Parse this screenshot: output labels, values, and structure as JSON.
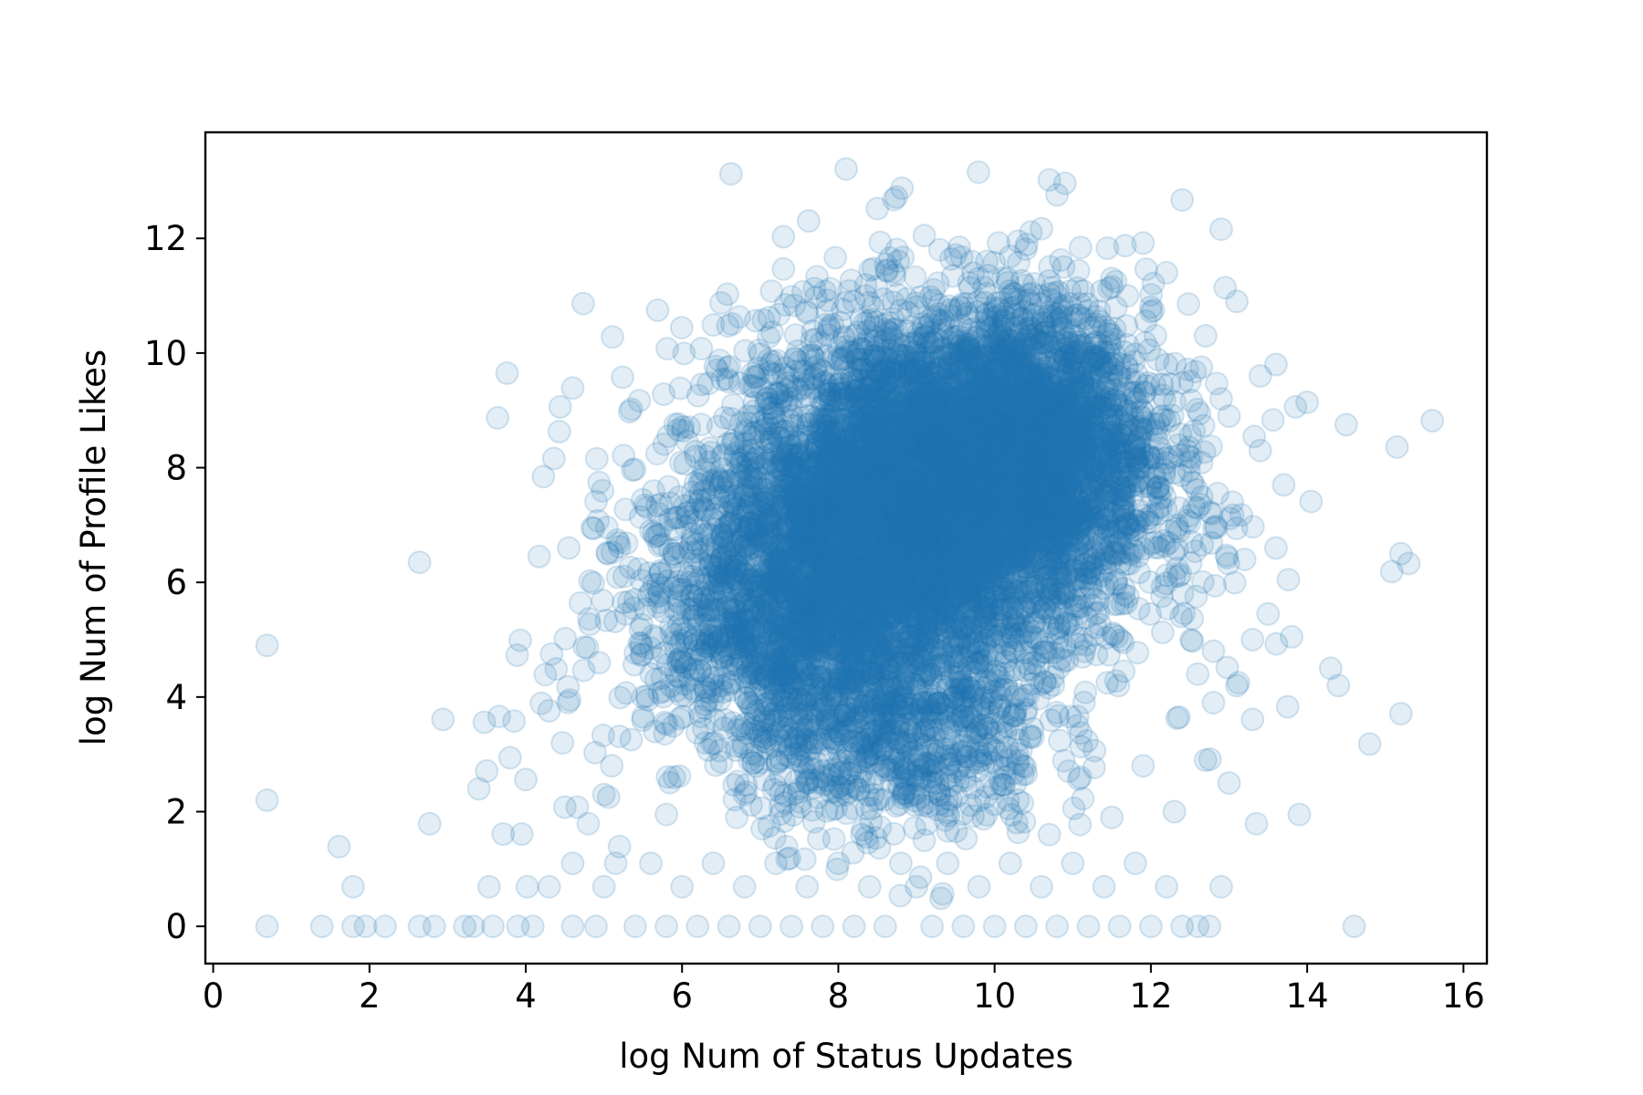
{
  "chart_data": {
    "type": "scatter",
    "title": "",
    "xlabel": "log Num of Status Updates",
    "ylabel": "log Num of Profile Likes",
    "xlim": [
      -0.1,
      16.3
    ],
    "ylim": [
      -0.65,
      13.85
    ],
    "x_ticks": [
      0,
      2,
      4,
      6,
      8,
      10,
      12,
      14,
      16
    ],
    "y_ticks": [
      0,
      2,
      4,
      6,
      8,
      10,
      12
    ],
    "grid": false,
    "legend": "none",
    "marker": "hollow-circle",
    "color": "#1f77b4",
    "alpha": 0.13,
    "series": [
      {
        "points": [
          [
            0.69,
            4.9
          ],
          [
            0.69,
            2.2
          ],
          [
            0.69,
            0
          ],
          [
            1.39,
            0
          ],
          [
            1.61,
            1.39
          ],
          [
            1.79,
            0.69
          ],
          [
            1.79,
            0
          ],
          [
            1.95,
            0
          ],
          [
            2.2,
            0
          ],
          [
            2.64,
            6.35
          ],
          [
            2.64,
            0
          ],
          [
            2.77,
            1.79
          ],
          [
            2.83,
            0
          ],
          [
            2.94,
            3.61
          ],
          [
            3.22,
            0
          ],
          [
            3.33,
            0
          ],
          [
            3.4,
            2.4
          ],
          [
            3.47,
            3.56
          ],
          [
            3.5,
            2.71
          ],
          [
            3.53,
            0.69
          ],
          [
            3.58,
            0
          ],
          [
            3.64,
            8.87
          ],
          [
            3.66,
            3.66
          ],
          [
            3.71,
            1.61
          ],
          [
            3.76,
            9.65
          ],
          [
            3.8,
            2.94
          ],
          [
            3.85,
            3.58
          ],
          [
            3.89,
            4.73
          ],
          [
            3.93,
            4.99
          ],
          [
            3.95,
            1.61
          ],
          [
            4.0,
            2.56
          ],
          [
            4.02,
            0.69
          ],
          [
            4.09,
            0
          ],
          [
            4.17,
            6.45
          ],
          [
            4.2,
            3.89
          ],
          [
            4.25,
            4.39
          ],
          [
            4.3,
            3.76
          ],
          [
            4.33,
            4.75
          ],
          [
            4.36,
            8.16
          ],
          [
            4.39,
            4.49
          ],
          [
            4.43,
            8.63
          ],
          [
            4.44,
            9.06
          ],
          [
            4.47,
            3.2
          ],
          [
            4.5,
            2.08
          ],
          [
            4.55,
            6.6
          ],
          [
            4.6,
            1.1
          ],
          [
            4.66,
            2.08
          ],
          [
            4.7,
            5.64
          ],
          [
            4.75,
            4.87
          ],
          [
            4.8,
            1.79
          ],
          [
            4.85,
            6.95
          ],
          [
            4.9,
            7.41
          ],
          [
            4.94,
            4.6
          ],
          [
            4.99,
            3.33
          ],
          [
            5.0,
            2.3
          ],
          [
            5.05,
            6.5
          ],
          [
            5.11,
            10.28
          ],
          [
            5.15,
            1.1
          ],
          [
            5.2,
            6.62
          ],
          [
            5.28,
            5.45
          ],
          [
            5.35,
            9.02
          ],
          [
            5.4,
            5.7
          ],
          [
            5.5,
            4.0
          ],
          [
            5.6,
            6.9
          ],
          [
            5.65,
            3.4
          ],
          [
            5.7,
            7.2
          ],
          [
            5.75,
            5.9
          ],
          [
            5.8,
            1.95
          ],
          [
            5.9,
            6.5
          ],
          [
            5.95,
            8.66
          ],
          [
            6.1,
            6.0
          ],
          [
            6.2,
            5.4
          ],
          [
            6.3,
            3.2
          ],
          [
            6.35,
            8.1
          ],
          [
            6.4,
            10.49
          ],
          [
            6.5,
            4.7
          ],
          [
            6.6,
            9.5
          ],
          [
            6.7,
            6.3
          ],
          [
            6.8,
            2.3
          ],
          [
            6.85,
            8.9
          ],
          [
            6.9,
            5.2
          ],
          [
            7.0,
            9.98
          ],
          [
            7.1,
            7.1
          ],
          [
            7.2,
            9.3
          ],
          [
            7.3,
            4.4
          ],
          [
            7.4,
            8.2
          ],
          [
            7.5,
            6.6
          ],
          [
            7.55,
            11.07
          ],
          [
            7.6,
            10.7
          ],
          [
            7.7,
            9.9
          ],
          [
            7.8,
            5.7
          ],
          [
            7.9,
            11.12
          ],
          [
            8.0,
            7.4
          ],
          [
            8.1,
            13.21
          ],
          [
            8.2,
            10.9
          ],
          [
            8.3,
            6.8
          ],
          [
            8.4,
            9.1
          ],
          [
            8.5,
            12.52
          ],
          [
            8.55,
            8.0
          ],
          [
            8.6,
            5.1
          ],
          [
            8.7,
            10.6
          ],
          [
            8.8,
            7.0
          ],
          [
            8.9,
            3.8
          ],
          [
            9.0,
            8.9
          ],
          [
            9.1,
            12.05
          ],
          [
            9.2,
            6.2
          ],
          [
            9.3,
            11.8
          ],
          [
            9.4,
            7.8
          ],
          [
            9.5,
            11.71
          ],
          [
            9.6,
            9.3
          ],
          [
            9.7,
            5.8
          ],
          [
            9.8,
            8.4
          ],
          [
            9.9,
            11.6
          ],
          [
            10.0,
            7.2
          ],
          [
            10.05,
            11.92
          ],
          [
            10.1,
            9.6
          ],
          [
            10.2,
            6.4
          ],
          [
            10.3,
            11.95
          ],
          [
            10.4,
            8.8
          ],
          [
            10.5,
            4.6
          ],
          [
            10.6,
            10.2
          ],
          [
            10.7,
            13.02
          ],
          [
            10.8,
            12.76
          ],
          [
            10.9,
            12.96
          ],
          [
            11.0,
            9.9
          ],
          [
            11.1,
            11.84
          ],
          [
            11.2,
            7.1
          ],
          [
            11.3,
            10.5
          ],
          [
            11.4,
            5.9
          ],
          [
            11.5,
            11.3
          ],
          [
            11.6,
            8.6
          ],
          [
            11.7,
            11.0
          ],
          [
            11.8,
            7.0
          ],
          [
            11.9,
            11.92
          ],
          [
            12.0,
            10.8
          ],
          [
            12.1,
            7.9
          ],
          [
            12.2,
            11.4
          ],
          [
            12.3,
            6.1
          ],
          [
            12.4,
            12.67
          ],
          [
            12.5,
            9.5
          ],
          [
            12.6,
            7.3
          ],
          [
            12.7,
            10.3
          ],
          [
            12.8,
            4.8
          ],
          [
            12.9,
            12.16
          ],
          [
            12.95,
            11.14
          ],
          [
            13.0,
            8.9
          ],
          [
            13.1,
            10.9
          ],
          [
            13.2,
            6.4
          ],
          [
            13.3,
            3.61
          ],
          [
            13.35,
            1.79
          ],
          [
            13.4,
            9.6
          ],
          [
            13.5,
            5.45
          ],
          [
            13.6,
            9.8
          ],
          [
            13.7,
            7.7
          ],
          [
            13.75,
            3.83
          ],
          [
            13.8,
            5.05
          ],
          [
            13.85,
            9.06
          ],
          [
            13.9,
            1.95
          ],
          [
            14.0,
            9.14
          ],
          [
            14.05,
            7.41
          ],
          [
            14.3,
            4.5
          ],
          [
            14.4,
            4.2
          ],
          [
            14.5,
            8.75
          ],
          [
            14.6,
            0
          ],
          [
            14.8,
            3.18
          ],
          [
            15.15,
            8.36
          ],
          [
            15.2,
            3.71
          ],
          [
            15.2,
            6.5
          ],
          [
            15.3,
            6.33
          ],
          [
            15.6,
            8.82
          ],
          [
            3.9,
            0
          ],
          [
            4.3,
            0.69
          ],
          [
            4.6,
            0
          ],
          [
            4.9,
            0
          ],
          [
            5.0,
            0.69
          ],
          [
            5.2,
            1.39
          ],
          [
            5.4,
            0
          ],
          [
            5.6,
            1.1
          ],
          [
            5.8,
            0
          ],
          [
            6.0,
            0.69
          ],
          [
            6.2,
            0
          ],
          [
            6.4,
            1.1
          ],
          [
            6.6,
            0
          ],
          [
            6.8,
            0.69
          ],
          [
            7.0,
            0
          ],
          [
            7.2,
            1.1
          ],
          [
            7.4,
            0
          ],
          [
            7.6,
            0.69
          ],
          [
            7.8,
            0
          ],
          [
            8.0,
            1.1
          ],
          [
            8.2,
            0
          ],
          [
            8.4,
            0.69
          ],
          [
            8.6,
            0
          ],
          [
            8.8,
            1.1
          ],
          [
            9.0,
            0.69
          ],
          [
            9.2,
            0
          ],
          [
            9.4,
            1.1
          ],
          [
            9.6,
            0
          ],
          [
            9.8,
            0.69
          ],
          [
            10.0,
            0
          ],
          [
            10.2,
            1.1
          ],
          [
            10.4,
            0
          ],
          [
            10.6,
            0.69
          ],
          [
            10.8,
            0
          ],
          [
            11.0,
            1.1
          ],
          [
            11.2,
            0
          ],
          [
            11.4,
            0.69
          ],
          [
            11.6,
            0
          ],
          [
            11.8,
            1.1
          ],
          [
            12.0,
            0
          ],
          [
            12.2,
            0.69
          ],
          [
            12.4,
            0
          ],
          [
            12.6,
            0
          ],
          [
            12.75,
            0
          ],
          [
            12.9,
            0.69
          ],
          [
            5.1,
            2.8
          ],
          [
            5.5,
            3.6
          ],
          [
            5.9,
            2.6
          ],
          [
            6.3,
            4.1
          ],
          [
            6.7,
            1.9
          ],
          [
            7.1,
            3.1
          ],
          [
            7.5,
            2.4
          ],
          [
            7.9,
            3.3
          ],
          [
            8.3,
            1.6
          ],
          [
            8.7,
            2.9
          ],
          [
            9.1,
            1.5
          ],
          [
            9.5,
            2.7
          ],
          [
            9.9,
            3.0
          ],
          [
            10.3,
            2.2
          ],
          [
            10.7,
            1.6
          ],
          [
            11.1,
            2.6
          ],
          [
            11.5,
            1.9
          ],
          [
            11.9,
            2.8
          ],
          [
            12.3,
            2.0
          ],
          [
            12.7,
            2.9
          ],
          [
            13.0,
            2.5
          ],
          [
            12.6,
            4.4
          ],
          [
            12.8,
            3.9
          ],
          [
            13.1,
            4.2
          ],
          [
            13.3,
            5.0
          ],
          [
            12.2,
            9.8
          ],
          [
            12.9,
            9.2
          ],
          [
            13.4,
            8.3
          ],
          [
            13.6,
            6.6
          ]
        ]
      }
    ],
    "dense_clusters": [
      {
        "cx": 9.3,
        "cy": 7.6,
        "sx": 1.35,
        "sy": 1.55,
        "n": 4200
      },
      {
        "cx": 8.4,
        "cy": 6.6,
        "sx": 1.15,
        "sy": 1.3,
        "n": 1800
      },
      {
        "cx": 10.4,
        "cy": 8.6,
        "sx": 0.8,
        "sy": 1.2,
        "n": 1500
      },
      {
        "cx": 8.7,
        "cy": 3.3,
        "sx": 1.0,
        "sy": 0.9,
        "n": 700
      },
      {
        "cx": 7.3,
        "cy": 5.2,
        "sx": 1.0,
        "sy": 1.1,
        "n": 900
      }
    ]
  }
}
